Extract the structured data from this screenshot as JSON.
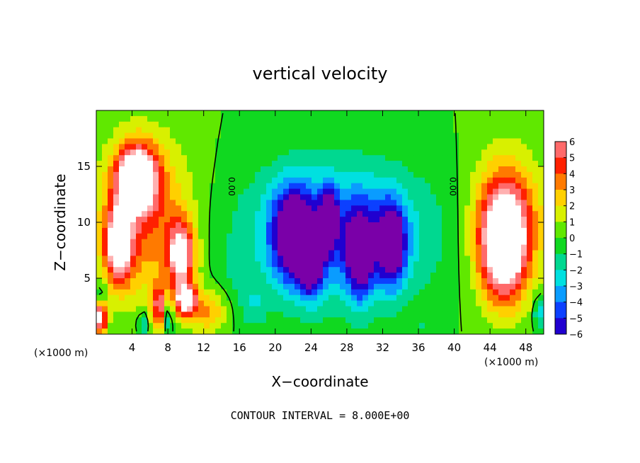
{
  "chart_data": {
    "type": "heatmap",
    "title": "vertical velocity",
    "xlabel": "X−coordinate",
    "ylabel": "Z−coordinate",
    "x_unit": "(×1000 m)",
    "y_unit": "(×1000 m)",
    "xlim": [
      0,
      50
    ],
    "ylim": [
      0,
      20
    ],
    "x_ticks": [
      4,
      8,
      12,
      16,
      20,
      24,
      28,
      32,
      36,
      40,
      44,
      48
    ],
    "y_ticks": [
      5,
      10,
      15
    ],
    "colorbar": {
      "min": -6,
      "max": 6,
      "ticks": [
        6,
        5,
        4,
        3,
        2,
        1,
        0,
        -1,
        -2,
        -3,
        -4,
        -5,
        -6
      ],
      "tick_labels": [
        "6",
        "5",
        "4",
        "3",
        "2",
        "1",
        "0",
        "−1",
        "−2",
        "−3",
        "−4",
        "−5",
        "−6"
      ]
    },
    "contour_labels": [
      {
        "text": "0.00",
        "x": 14.8,
        "z": 13.2
      },
      {
        "text": "0.00",
        "x": 39.5,
        "z": 13.2
      }
    ],
    "regions": [
      {
        "x": 4.5,
        "z": 14.0,
        "sx": 2.2,
        "sz": 2.8,
        "v": 9
      },
      {
        "x": 2.5,
        "z": 8.0,
        "sx": 1.6,
        "sz": 3.5,
        "v": 7
      },
      {
        "x": 5.5,
        "z": 10.5,
        "sx": 5.0,
        "sz": 7.0,
        "v": 4
      },
      {
        "x": 9.5,
        "z": 7.0,
        "sx": 1.5,
        "sz": 3.0,
        "v": 7
      },
      {
        "x": 10.0,
        "z": 3.0,
        "sx": 1.2,
        "sz": 1.5,
        "v": 7
      },
      {
        "x": 7.0,
        "z": 2.5,
        "sx": 0.8,
        "sz": 2.0,
        "v": 5
      },
      {
        "x": 12.5,
        "z": 2.0,
        "sx": 2.0,
        "sz": 2.0,
        "v": 3
      },
      {
        "x": 0.5,
        "z": 1.5,
        "sx": 0.7,
        "sz": 1.6,
        "v": 7
      },
      {
        "x": 0.6,
        "z": 3.5,
        "sx": 0.5,
        "sz": 1.0,
        "v": -3
      },
      {
        "x": 5.2,
        "z": 1.0,
        "sx": 0.5,
        "sz": 1.0,
        "v": -3
      },
      {
        "x": 8.0,
        "z": 1.5,
        "sx": 0.5,
        "sz": 1.5,
        "v": -3
      },
      {
        "x": 15.5,
        "z": 6.0,
        "sx": 1.5,
        "sz": 2.0,
        "v": -0.8
      },
      {
        "x": 27.0,
        "z": 9.0,
        "sx": 10.0,
        "sz": 6.0,
        "v": -4.6
      },
      {
        "x": 22.0,
        "z": 9.0,
        "sx": 2.2,
        "sz": 4.0,
        "v": -7
      },
      {
        "x": 24.0,
        "z": 6.5,
        "sx": 1.3,
        "sz": 3.0,
        "v": -6
      },
      {
        "x": 26.0,
        "z": 10.5,
        "sx": 0.9,
        "sz": 2.5,
        "v": -6
      },
      {
        "x": 33.0,
        "z": 8.0,
        "sx": 1.5,
        "sz": 3.5,
        "v": -7
      },
      {
        "x": 29.5,
        "z": 7.0,
        "sx": 1.5,
        "sz": 4.0,
        "v": -5.5
      },
      {
        "x": 17.5,
        "z": 2.5,
        "sx": 1.5,
        "sz": 2.0,
        "v": -1.5
      },
      {
        "x": 45.5,
        "z": 8.0,
        "sx": 2.6,
        "sz": 5.0,
        "v": 8
      },
      {
        "x": 46.0,
        "z": 10.0,
        "sx": 4.0,
        "sz": 6.0,
        "v": 4
      },
      {
        "x": 49.5,
        "z": 2.0,
        "sx": 0.6,
        "sz": 1.5,
        "v": -3
      },
      {
        "x": 36.5,
        "z": 0.5,
        "sx": 1.0,
        "sz": 0.5,
        "v": -1
      }
    ]
  },
  "footer": "CONTOUR INTERVAL = 8.000E+00",
  "colors": {
    "palette": [
      "#7a00a8",
      "#2000d0",
      "#0c40ff",
      "#0a9cff",
      "#00e0e0",
      "#00d890",
      "#10d820",
      "#60e800",
      "#d8f000",
      "#ffd000",
      "#ff7a00",
      "#ff2000",
      "#ff6a6a",
      "#ffb0b0",
      "#ffffff"
    ]
  }
}
